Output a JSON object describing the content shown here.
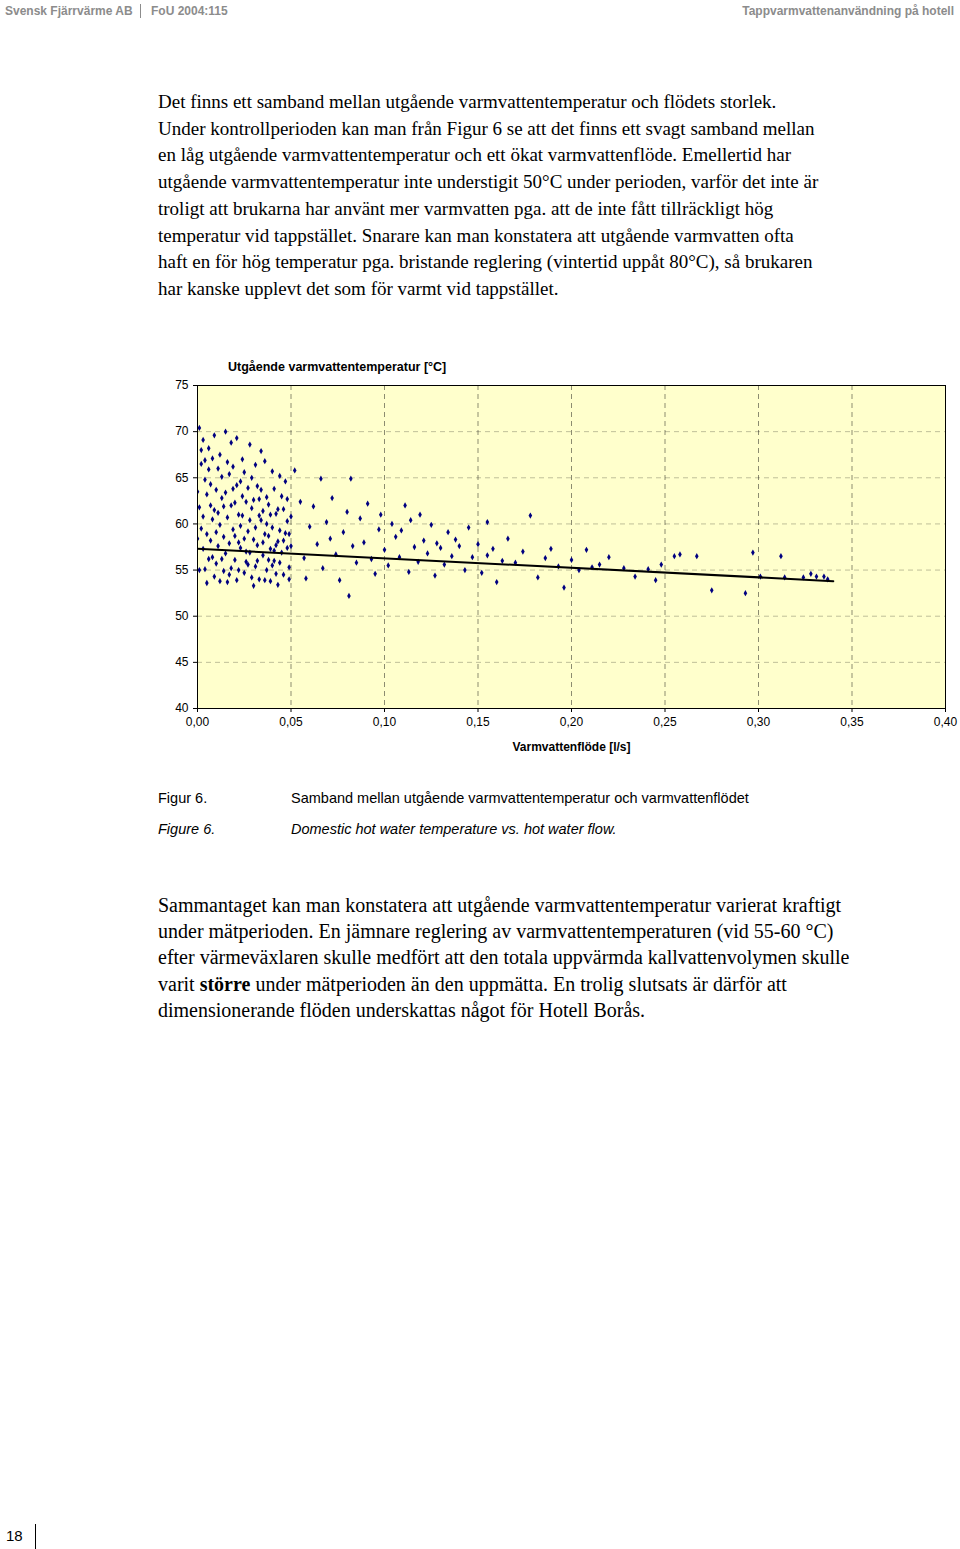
{
  "header": {
    "left": "Svensk Fjärrvärme AB",
    "middle": "FoU 2004:115",
    "right": "Tappvarmvattenanvändning på hotell"
  },
  "paragraph_1": [
    "Det finns ett samband mellan utgående varmvattentemperatur och flödets storlek.",
    "Under kontrollperioden kan man från Figur 6 se att det finns ett svagt samband mellan",
    "en låg utgående varmvattentemperatur och ett ökat varmvattenflöde. Emellertid har",
    "utgående varmvattentemperatur inte understigit 50°C under perioden, varför det inte är",
    "troligt att brukarna har använt mer varmvatten pga. att de inte fått tillräckligt hög",
    "temperatur vid tappstället. Snarare kan man konstatera att utgående varmvatten ofta",
    "haft en för hög temperatur pga. bristande reglering (vintertid uppåt 80°C), så brukaren",
    "har kanske upplevt det som för varmt vid tappstället."
  ],
  "chart_data": {
    "type": "scatter",
    "ylabel": "Utgående varmvattentemperatur [°C]",
    "xlabel": "Varmvattenflöde [l/s]",
    "xlim": [
      0,
      0.4
    ],
    "ylim": [
      40,
      75
    ],
    "xticks": [
      {
        "value": 0,
        "label": "0,00"
      },
      {
        "value": 0.05,
        "label": "0,05"
      },
      {
        "value": 0.1,
        "label": "0,10"
      },
      {
        "value": 0.15,
        "label": "0,15"
      },
      {
        "value": 0.2,
        "label": "0,20"
      },
      {
        "value": 0.25,
        "label": "0,25"
      },
      {
        "value": 0.3,
        "label": "0,30"
      },
      {
        "value": 0.35,
        "label": "0,35"
      },
      {
        "value": 0.4,
        "label": "0,40"
      }
    ],
    "yticks": [
      40,
      45,
      50,
      55,
      60,
      65,
      70,
      75
    ],
    "grid": true,
    "series": [
      {
        "type": "scatter",
        "marker": "diamond",
        "color": "#000080",
        "x": [
          0.001,
          0.003,
          0.006,
          0.009,
          0.012,
          0.015,
          0.018,
          0.021,
          0.024,
          0.028,
          0.031,
          0.034,
          0.036,
          0.04,
          0.044,
          0.047,
          0.002,
          0.004,
          0.005,
          0.007,
          0.008,
          0.01,
          0.011,
          0.013,
          0.014,
          0.016,
          0.017,
          0.019,
          0.02,
          0.022,
          0.023,
          0.025,
          0.026,
          0.027,
          0.029,
          0.03,
          0.032,
          0.033,
          0.035,
          0.037,
          0.038,
          0.039,
          0.041,
          0.042,
          0.043,
          0.045,
          0.046,
          0.048,
          0.049,
          0.05,
          0.001,
          0.002,
          0.003,
          0.004,
          0.005,
          0.006,
          0.007,
          0.008,
          0.009,
          0.01,
          0.011,
          0.012,
          0.013,
          0.014,
          0.015,
          0.016,
          0.017,
          0.018,
          0.019,
          0.02,
          0.021,
          0.022,
          0.023,
          0.024,
          0.025,
          0.026,
          0.027,
          0.028,
          0.029,
          0.03,
          0.031,
          0.032,
          0.033,
          0.034,
          0.035,
          0.036,
          0.037,
          0.038,
          0.039,
          0.04,
          0.041,
          0.042,
          0.043,
          0.044,
          0.045,
          0.046,
          0.047,
          0.048,
          0.049,
          0.05,
          0.052,
          0.055,
          0.057,
          0.058,
          0.06,
          0.062,
          0.064,
          0.066,
          0.067,
          0.069,
          0.071,
          0.072,
          0.074,
          0.076,
          0.078,
          0.08,
          0.081,
          0.082,
          0.083,
          0.085,
          0.087,
          0.089,
          0.091,
          0.093,
          0.095,
          0.097,
          0.098,
          0.1,
          0.102,
          0.104,
          0.106,
          0.108,
          0.109,
          0.111,
          0.113,
          0.114,
          0.116,
          0.118,
          0.119,
          0.121,
          0.123,
          0.125,
          0.127,
          0.128,
          0.13,
          0.132,
          0.134,
          0.136,
          0.138,
          0.14,
          0.143,
          0.145,
          0.147,
          0.15,
          0.152,
          0.155,
          0.155,
          0.158,
          0.16,
          0.163,
          0.166,
          0.17,
          0.174,
          0.178,
          0.182,
          0.186,
          0.189,
          0.193,
          0.196,
          0.2,
          0.204,
          0.208,
          0.211,
          0.215,
          0.22,
          0.228,
          0.234,
          0.241,
          0.245,
          0.248,
          0.255,
          0.258,
          0.267,
          0.275,
          0.293,
          0.297,
          0.301,
          0.312,
          0.314,
          0.324,
          0.328,
          0.331,
          0.335,
          0.337,
          0,
          0,
          0.001,
          0.002,
          0.003,
          0.004,
          0.005,
          0.006,
          0.007,
          0.008,
          0.009,
          0.01,
          0.011,
          0.012,
          0.013,
          0.014,
          0.015,
          0.016,
          0.017,
          0.018,
          0.019,
          0.02,
          0.021,
          0.022,
          0.023,
          0.024,
          0.025,
          0.026,
          0.027,
          0.028,
          0.029,
          0.03,
          0.031,
          0.032,
          0.033,
          0.034,
          0.035,
          0.036,
          0.037,
          0.038,
          0.039,
          0.04,
          0.041,
          0.042,
          0.043,
          0.044,
          0.046,
          0.048,
          0.049
        ],
        "values": [
          70.4,
          69.1,
          68.2,
          69.6,
          67.5,
          70.0,
          68.8,
          69.3,
          67.0,
          68.6,
          66.4,
          67.9,
          66.8,
          65.7,
          65.2,
          64.6,
          66.5,
          64.8,
          63.2,
          62.0,
          60.5,
          59.1,
          57.6,
          56.2,
          54.9,
          53.7,
          65.4,
          63.8,
          62.3,
          61.0,
          59.8,
          58.4,
          57.0,
          55.6,
          54.2,
          53.3,
          64.1,
          62.7,
          61.4,
          60.0,
          58.7,
          57.3,
          56.0,
          54.6,
          53.4,
          63.0,
          61.6,
          60.3,
          58.9,
          57.6,
          61.8,
          59.5,
          57.3,
          55.1,
          53.6,
          65.9,
          58.2,
          56.4,
          54.3,
          63.7,
          61.2,
          59.9,
          62.8,
          58.6,
          56.8,
          60.7,
          57.9,
          55.2,
          59.4,
          56.1,
          53.9,
          58.0,
          64.6,
          60.9,
          54.7,
          62.4,
          59.2,
          56.9,
          61.7,
          58.3,
          55.4,
          57.7,
          54.0,
          60.4,
          56.6,
          58.9,
          55.0,
          62.1,
          53.8,
          59.6,
          57.1,
          61.1,
          58.1,
          55.8,
          56.9,
          54.5,
          59.0,
          57.4,
          55.3,
          60.8,
          65.8,
          62.4,
          56.3,
          54.1,
          59.7,
          61.9,
          57.8,
          64.9,
          55.2,
          60.2,
          58.4,
          62.8,
          56.7,
          53.9,
          59.1,
          61.3,
          52.2,
          64.9,
          57.6,
          55.8,
          60.6,
          58.0,
          62.2,
          56.2,
          54.6,
          59.4,
          61.0,
          57.2,
          55.5,
          60.0,
          58.6,
          56.4,
          59.3,
          62.0,
          54.8,
          60.4,
          57.5,
          55.9,
          61.0,
          58.2,
          56.8,
          59.9,
          54.4,
          57.9,
          57.4,
          55.6,
          59.1,
          56.5,
          58.3,
          57.6,
          55.0,
          59.6,
          56.4,
          57.8,
          54.7,
          60.2,
          56.6,
          57.3,
          53.7,
          56.0,
          58.4,
          55.8,
          57.0,
          60.9,
          54.2,
          56.3,
          57.3,
          55.4,
          53.1,
          56.1,
          55.0,
          57.2,
          55.3,
          55.6,
          56.4,
          55.2,
          54.3,
          55.1,
          53.9,
          55.6,
          56.5,
          56.7,
          56.5,
          52.8,
          52.5,
          56.9,
          54.3,
          56.5,
          54.2,
          54.2,
          54.6,
          54.3,
          54.3,
          54.0,
          58.4,
          63.5,
          55.0,
          68.0,
          60.8,
          66.9,
          58.9,
          56.2,
          64.3,
          67.1,
          61.5,
          55.7,
          66.0,
          53.8,
          65.1,
          61.9,
          63.4,
          66.7,
          54.5,
          62.0,
          66.2,
          58.7,
          64.2,
          55.0,
          57.4,
          63.0,
          65.6,
          55.9,
          63.9,
          60.4,
          65.0,
          62.6,
          59.6,
          56.0,
          60.9,
          63.7,
          58.0,
          53.9,
          62.9,
          56.1,
          61.0,
          55.5,
          63.8,
          57.7,
          61.6,
          59.3,
          58.2,
          62.7,
          54.0
        ]
      },
      {
        "type": "line",
        "line_style": "solid",
        "color": "#000000",
        "x": [
          0,
          0.34
        ],
        "values": [
          57.3,
          53.8
        ]
      }
    ]
  },
  "caption": {
    "sv_label": "Figur 6.",
    "sv_text": "Samband mellan utgående varmvattentemperatur och varmvattenflödet",
    "en_label": "Figure 6.",
    "en_text": "Domestic hot water temperature vs. hot water flow."
  },
  "paragraph_2": [
    [
      "Sammantaget kan man konstatera att utgående varmvattentemperatur varierat kraftigt"
    ],
    [
      "under mätperioden. En jämnare reglering av varmvattentemperaturen (vid 55-60 °C)"
    ],
    [
      "efter värmeväxlaren skulle medfört att den totala uppvärmda kallvattenvolymen skulle"
    ],
    [
      "varit ",
      {
        "text": "större",
        "bold": true
      },
      " under mätperioden än den uppmätta. En trolig slutsats är därför att"
    ],
    [
      "dimensionerande flöden underskattas något för Hotell Borås."
    ]
  ],
  "page_number": 18
}
